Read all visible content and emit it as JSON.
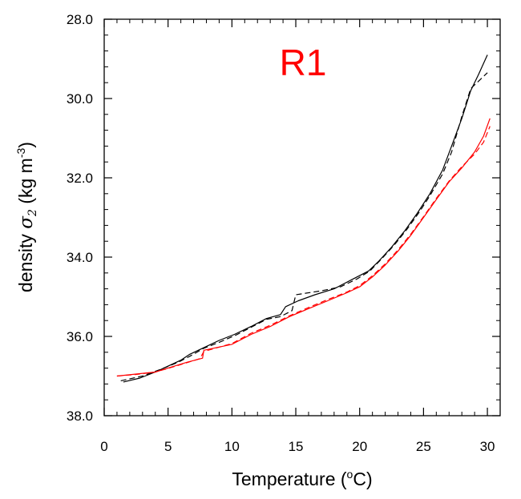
{
  "chart_data": {
    "type": "line",
    "title": "",
    "panel_label": "R1",
    "panel_label_color": "#ff0000",
    "xlabel": "Temperature (",
    "xlabel_unit": "o",
    "xlabel_unit_tail": "C)",
    "ylabel_prefix": "density ",
    "ylabel_symbol": "σ",
    "ylabel_subscript": "2",
    "ylabel_unit": " (kg m",
    "ylabel_exponent": "-3",
    "ylabel_close": ")",
    "xlim": [
      0,
      31
    ],
    "ylim": [
      28,
      38
    ],
    "y_inverted": true,
    "grid": false,
    "x_ticks": [
      {
        "value": 0,
        "label": "0"
      },
      {
        "value": 5,
        "label": "5"
      },
      {
        "value": 10,
        "label": "10"
      },
      {
        "value": 15,
        "label": "15"
      },
      {
        "value": 20,
        "label": "20"
      },
      {
        "value": 25,
        "label": "25"
      },
      {
        "value": 30,
        "label": "30"
      }
    ],
    "y_ticks": [
      {
        "value": 28,
        "label": "28.0"
      },
      {
        "value": 30,
        "label": "30.0"
      },
      {
        "value": 32,
        "label": "32.0"
      },
      {
        "value": 34,
        "label": "34.0"
      },
      {
        "value": 36,
        "label": "36.0"
      },
      {
        "value": 38,
        "label": "38.0"
      }
    ],
    "series": [
      {
        "color": "#000000",
        "dash": "solid",
        "x": [
          1.5,
          2.8,
          4.0,
          5.0,
          6.0,
          6.7,
          7.7,
          9.0,
          10.2,
          11.5,
          12.7,
          13.8,
          14.2,
          15.2,
          16.5,
          18.0,
          19.5,
          20.7,
          21.5,
          22.5,
          23.5,
          24.5,
          25.5,
          26.5,
          27.2,
          28.0,
          28.7,
          29.3,
          30.0
        ],
        "y": [
          37.15,
          37.05,
          36.9,
          36.75,
          36.6,
          36.45,
          36.3,
          36.1,
          35.95,
          35.75,
          35.55,
          35.45,
          35.25,
          35.1,
          34.95,
          34.8,
          34.55,
          34.35,
          34.1,
          33.75,
          33.35,
          32.9,
          32.4,
          31.8,
          31.2,
          30.5,
          29.8,
          29.4,
          28.9
        ]
      },
      {
        "color": "#000000",
        "dash": "dashed",
        "x": [
          1.3,
          3.0,
          4.5,
          5.8,
          6.7,
          7.8,
          9.0,
          10.3,
          11.5,
          12.7,
          13.8,
          14.7,
          15.0,
          17.0,
          18.5,
          19.8,
          20.8,
          21.7,
          22.7,
          23.7,
          24.7,
          25.5,
          26.5,
          27.2,
          28.0,
          28.7,
          30.0
        ],
        "y": [
          37.12,
          37.0,
          36.82,
          36.65,
          36.5,
          36.3,
          36.15,
          35.97,
          35.77,
          35.57,
          35.5,
          35.35,
          34.95,
          34.85,
          34.75,
          34.55,
          34.35,
          34.05,
          33.7,
          33.3,
          32.85,
          32.45,
          31.9,
          31.35,
          30.45,
          29.75,
          29.35
        ]
      },
      {
        "color": "#ff0000",
        "dash": "solid",
        "x": [
          1.0,
          2.5,
          4.0,
          5.5,
          6.5,
          7.7,
          7.8,
          10.0,
          11.5,
          13.0,
          14.5,
          16.0,
          17.5,
          19.0,
          20.0,
          21.0,
          22.0,
          23.0,
          24.0,
          25.0,
          26.0,
          27.0,
          28.0,
          29.0,
          29.7,
          30.2
        ],
        "y": [
          37.0,
          36.95,
          36.9,
          36.75,
          36.65,
          36.55,
          36.35,
          36.2,
          35.95,
          35.75,
          35.5,
          35.3,
          35.1,
          34.9,
          34.75,
          34.5,
          34.2,
          33.85,
          33.45,
          33.0,
          32.55,
          32.1,
          31.75,
          31.35,
          30.95,
          30.5
        ]
      },
      {
        "color": "#ff0000",
        "dash": "dashed",
        "x": [
          1.0,
          2.5,
          4.0,
          5.5,
          6.5,
          7.5,
          7.8,
          10.0,
          11.5,
          13.0,
          14.5,
          16.0,
          17.5,
          19.0,
          20.0,
          21.0,
          22.0,
          23.0,
          24.0,
          25.0,
          26.0,
          27.0,
          28.0,
          29.0,
          29.7,
          30.2
        ],
        "y": [
          37.0,
          36.96,
          36.9,
          36.76,
          36.66,
          36.56,
          36.38,
          36.18,
          35.92,
          35.72,
          35.48,
          35.27,
          35.07,
          34.88,
          34.72,
          34.47,
          34.17,
          33.82,
          33.42,
          32.98,
          32.52,
          32.08,
          31.72,
          31.4,
          31.1,
          30.7
        ]
      }
    ]
  }
}
